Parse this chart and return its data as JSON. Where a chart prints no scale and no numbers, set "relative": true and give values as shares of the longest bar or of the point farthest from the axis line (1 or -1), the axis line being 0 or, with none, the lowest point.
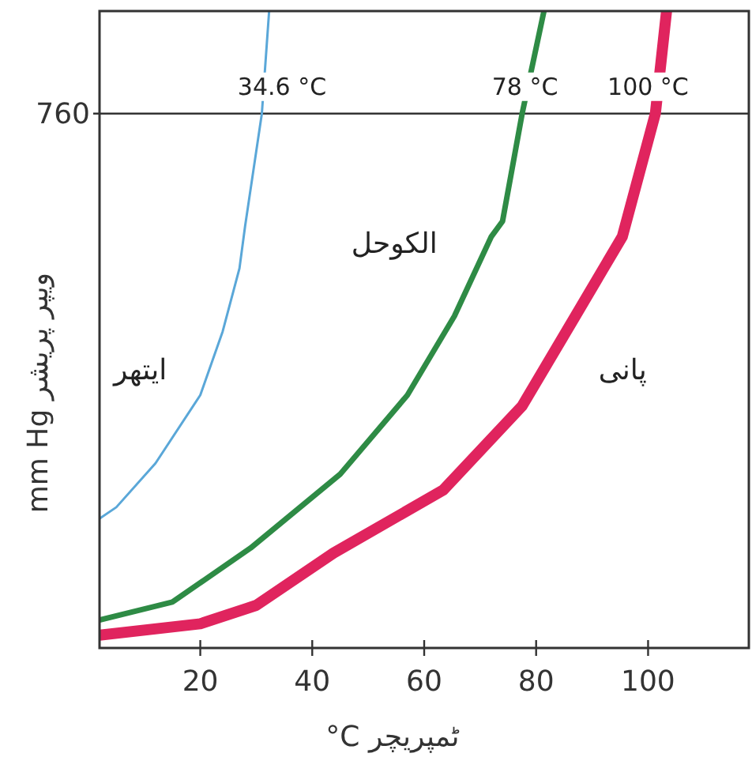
{
  "chart_data": {
    "type": "line",
    "xlabel": "°C ٹمپریچر",
    "ylabel": "mm Hg ویپر پریشر",
    "xlim": [
      2,
      118
    ],
    "xticks": [
      20,
      40,
      60,
      80,
      100
    ],
    "relative": true,
    "grid": false,
    "legend": false,
    "marker": "none",
    "line_style": "solid",
    "series": [
      {
        "name": "ایتھر",
        "color": "#5aa7d8",
        "x": [
          2,
          5,
          12,
          20,
          24,
          27,
          28,
          31,
          32.3
        ],
        "values": [
          0.203,
          0.221,
          0.29,
          0.397,
          0.497,
          0.596,
          0.662,
          0.839,
          1
        ]
      },
      {
        "name": "الکوحل",
        "color": "#2e8b45",
        "x": [
          2,
          15,
          29,
          45,
          57,
          65.4,
          72,
          74,
          77.5,
          81.4
        ],
        "values": [
          0.044,
          0.072,
          0.157,
          0.273,
          0.397,
          0.521,
          0.646,
          0.67,
          0.839,
          1
        ]
      },
      {
        "name": "پانی",
        "color": "#e0245e",
        "x": [
          2,
          20,
          30,
          43.8,
          63.4,
          77.5,
          87,
          95.4,
          101.3,
          103.3
        ],
        "values": [
          0.02,
          0.038,
          0.067,
          0.149,
          0.248,
          0.38,
          0.521,
          0.646,
          0.839,
          1
        ]
      }
    ],
    "ref_lines": [
      {
        "axis": "y",
        "value": 0.839,
        "color": "#333333"
      }
    ],
    "annotations": [
      "760",
      {
        "text": "34.6 °C",
        "x": 34.6,
        "y": 0.839
      },
      {
        "text": "78 °C",
        "x": 78,
        "y": 0.839
      },
      {
        "text": "100 °C",
        "x": 100,
        "y": 0.839
      }
    ]
  }
}
